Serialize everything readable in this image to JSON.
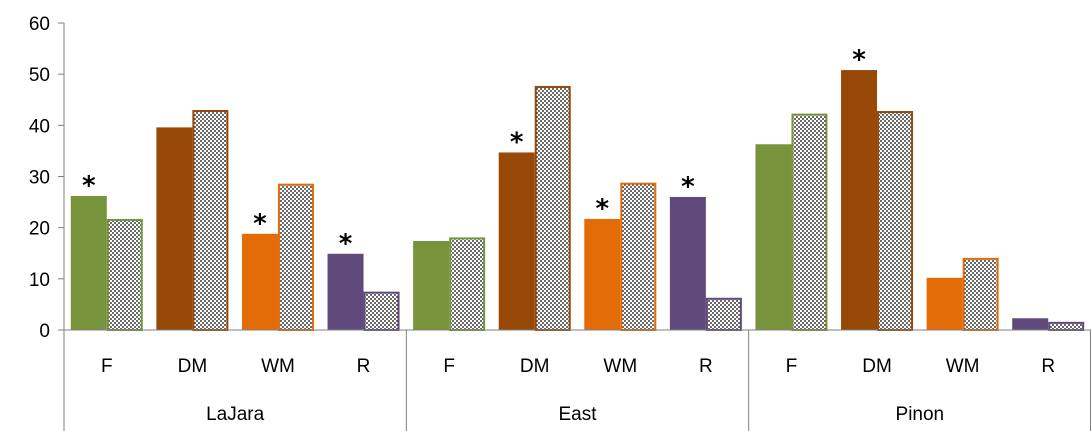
{
  "chart_data": {
    "type": "bar",
    "ylim": [
      0,
      60
    ],
    "yticks": [
      "0",
      "10",
      "20",
      "30",
      "40",
      "50",
      "60"
    ],
    "grid": false,
    "legend": "none",
    "groups": [
      {
        "label": "LaJara",
        "categories": [
          {
            "label": "F",
            "solid": 26.2,
            "dotted": 21.5,
            "star": "*"
          },
          {
            "label": "DM",
            "solid": 39.6,
            "dotted": 42.8,
            "star": ""
          },
          {
            "label": "WM",
            "solid": 18.8,
            "dotted": 28.4,
            "star": "*"
          },
          {
            "label": "R",
            "solid": 14.9,
            "dotted": 7.3,
            "star": "*"
          }
        ]
      },
      {
        "label": "East",
        "categories": [
          {
            "label": "F",
            "solid": 17.4,
            "dotted": 17.9,
            "star": ""
          },
          {
            "label": "DM",
            "solid": 34.7,
            "dotted": 47.5,
            "star": "*"
          },
          {
            "label": "WM",
            "solid": 21.7,
            "dotted": 28.6,
            "star": "*"
          },
          {
            "label": "R",
            "solid": 26.0,
            "dotted": 6.1,
            "star": "*"
          }
        ]
      },
      {
        "label": "Pinon",
        "categories": [
          {
            "label": "F",
            "solid": 36.3,
            "dotted": 42.1,
            "star": ""
          },
          {
            "label": "DM",
            "solid": 50.8,
            "dotted": 42.6,
            "star": "*"
          },
          {
            "label": "WM",
            "solid": 10.2,
            "dotted": 13.9,
            "star": ""
          },
          {
            "label": "R",
            "solid": 2.3,
            "dotted": 1.4,
            "star": ""
          }
        ]
      }
    ],
    "colors": {
      "F": "#77933c",
      "DM": "#984807",
      "WM": "#e36c09",
      "R": "#604a7b"
    }
  }
}
